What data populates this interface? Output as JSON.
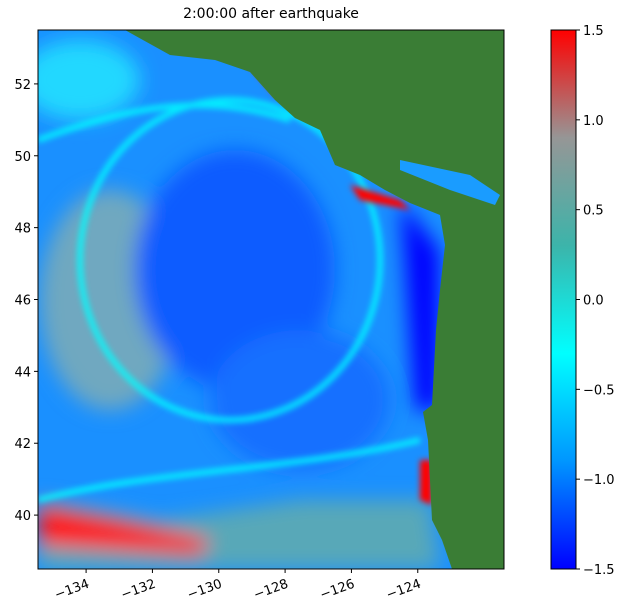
{
  "chart_data": {
    "type": "heatmap",
    "title": "2:00:00 after earthquake",
    "xlim": [
      -135.45,
      -121.4
    ],
    "ylim": [
      38.5,
      53.5
    ],
    "xticks": [
      {
        "value": -134,
        "label": "−134"
      },
      {
        "value": -132,
        "label": "−132"
      },
      {
        "value": -130,
        "label": "−130"
      },
      {
        "value": -128,
        "label": "−128"
      },
      {
        "value": -126,
        "label": "−126"
      },
      {
        "value": -124,
        "label": "−124"
      }
    ],
    "yticks": [
      40,
      42,
      44,
      46,
      48,
      50,
      52
    ],
    "clim": [
      -1.5,
      1.5
    ],
    "cticks": [
      {
        "value": -1.5,
        "label": "−1.5"
      },
      {
        "value": -1.0,
        "label": "−1.0"
      },
      {
        "value": -0.5,
        "label": "−0.5"
      },
      {
        "value": 0.0,
        "label": "0.0"
      },
      0.5,
      {
        "value": 1.0,
        "label": "1.0"
      },
      1.5
    ],
    "colormap": [
      "#0000ff",
      "#0096ff",
      "#00ffff",
      "#3cb4aa",
      "#969696",
      "#ff0000"
    ],
    "land_color": "#3a7d35"
  }
}
